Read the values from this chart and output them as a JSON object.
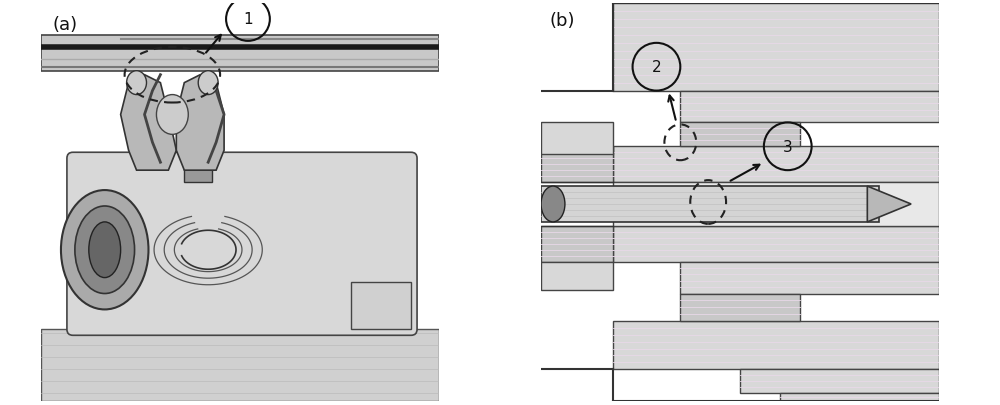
{
  "fig_width": 10.0,
  "fig_height": 4.06,
  "dpi": 100,
  "bg_color": "#ffffff",
  "panel_a_bg": "#e8e8e8",
  "panel_b_bg": "#ffffff",
  "label_fontsize": 13,
  "callout_fontsize": 12,
  "colors": {
    "light_gray": "#d4d4d4",
    "mid_gray": "#b8b8b8",
    "dark_gray": "#888888",
    "darker_gray": "#666666",
    "darkest": "#333333",
    "near_black": "#1a1a1a",
    "white": "#ffffff",
    "hatch_line": "#c0c0c0",
    "pink_tint": "#f0e8f0"
  }
}
